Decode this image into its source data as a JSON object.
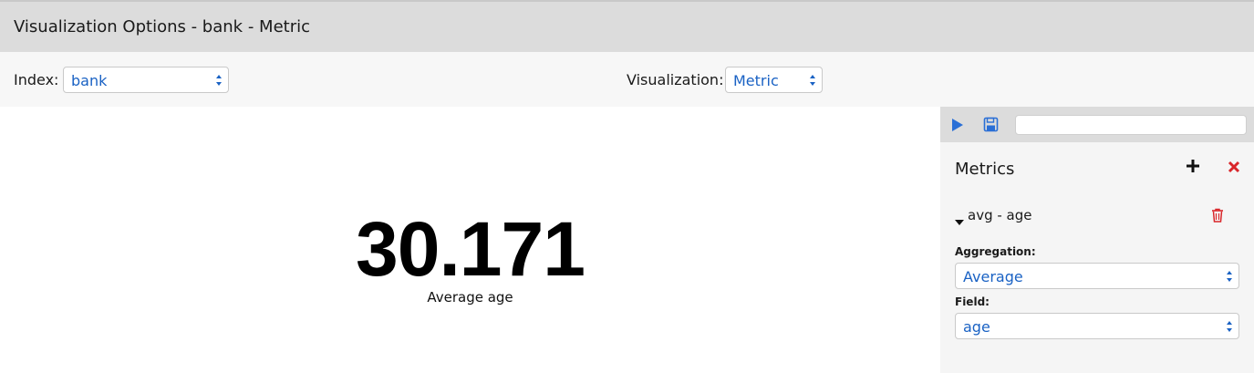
{
  "header": {
    "title": "Visualization Options - bank - Metric"
  },
  "options": {
    "index_label": "Index:",
    "index_value": "bank",
    "visualization_label": "Visualization:",
    "visualization_value": "Metric"
  },
  "metric": {
    "value": "30.171",
    "label": "Average age"
  },
  "sidebar": {
    "toolbar": {
      "play_icon": "play-icon",
      "save_icon": "save-icon",
      "input_value": ""
    },
    "metrics_heading": "Metrics",
    "add_icon": "plus-icon",
    "close_icon": "close-icon",
    "aggregation_item": {
      "title": "avg - age",
      "caret_icon": "caret-down-icon",
      "delete_icon": "trash-icon",
      "aggregation_label": "Aggregation:",
      "aggregation_value": "Average",
      "field_label": "Field:",
      "field_value": "age"
    }
  },
  "colors": {
    "link_blue": "#1a62c4",
    "play_blue": "#2a6fd6",
    "danger_red": "#d9262a",
    "header_gray": "#dcdcdc",
    "options_bg": "#f7f7f7",
    "sidebar_bg": "#f5f5f5"
  }
}
